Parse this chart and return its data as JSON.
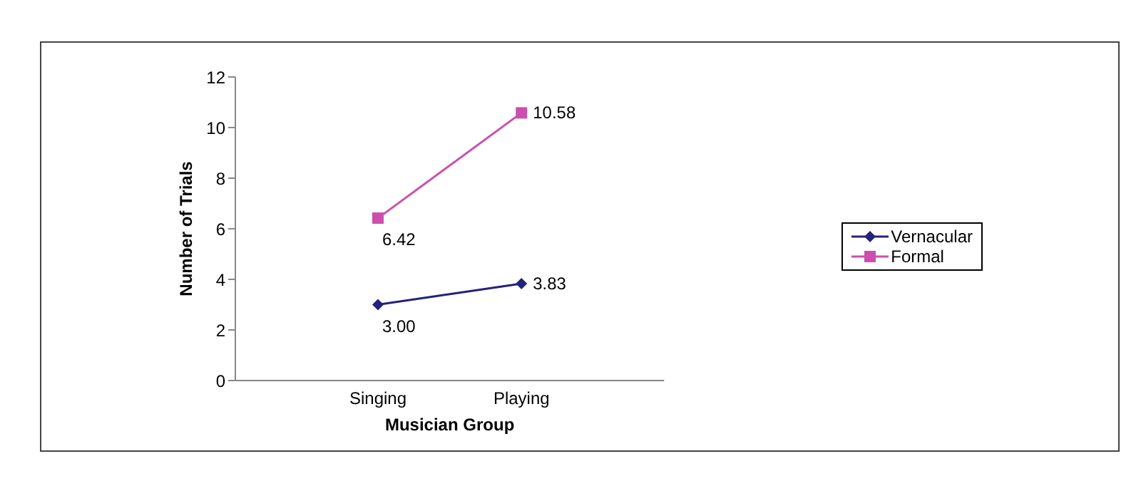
{
  "chart_data": {
    "type": "line",
    "xlabel": "Musician Group",
    "ylabel": "Number of Trials",
    "categories": [
      "Singing",
      "Playing"
    ],
    "series": [
      {
        "name": "Vernacular",
        "color": "#23237a",
        "values": [
          3.0,
          3.83
        ],
        "value_labels": [
          "3.00",
          "3.83"
        ],
        "marker": "diamond"
      },
      {
        "name": "Formal",
        "color": "#cc4fae",
        "values": [
          6.42,
          10.58
        ],
        "value_labels": [
          "6.42",
          "10.58"
        ],
        "marker": "square"
      }
    ],
    "ylim": [
      0,
      12
    ],
    "yticks": [
      0,
      2,
      4,
      6,
      8,
      10,
      12
    ],
    "grid": false,
    "legend": "right",
    "line_style": "solid"
  }
}
